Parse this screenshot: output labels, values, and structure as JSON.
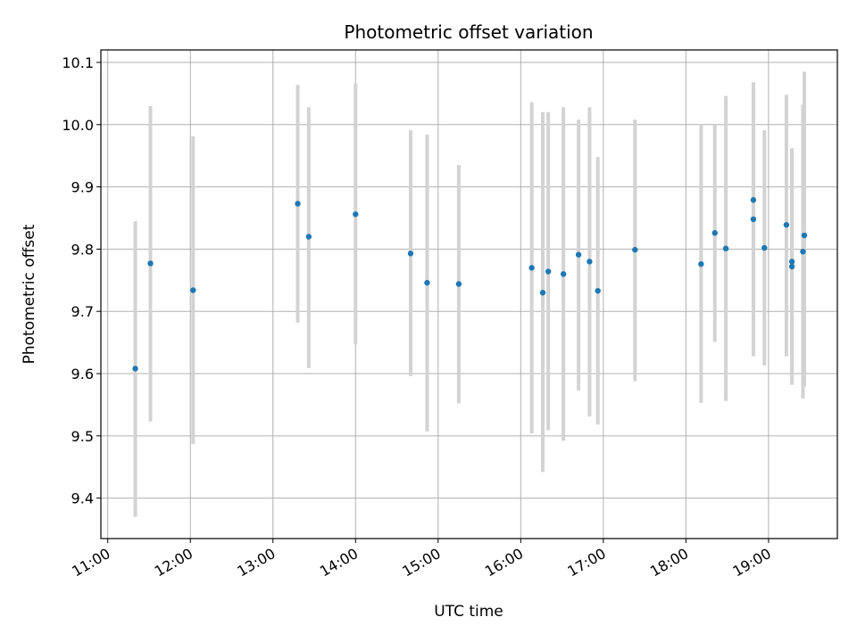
{
  "chart_data": {
    "type": "scatter",
    "title": "Photometric offset variation",
    "xlabel": "UTC time",
    "ylabel": "Photometric offset",
    "xlim": [
      "10:55",
      "19:50"
    ],
    "ylim": [
      9.335,
      10.12
    ],
    "grid": true,
    "x_ticks": [
      "11:00",
      "12:00",
      "13:00",
      "14:00",
      "15:00",
      "16:00",
      "17:00",
      "18:00",
      "19:00"
    ],
    "y_ticks": [
      9.4,
      9.5,
      9.6,
      9.7,
      9.8,
      9.9,
      10.0,
      10.1
    ],
    "y_tick_labels": [
      "9.4",
      "9.5",
      "9.6",
      "9.7",
      "9.8",
      "9.9",
      "10.0",
      "10.1"
    ],
    "colors": {
      "point": "#1f77b4",
      "errorbar": "#d3d3d3",
      "grid": "#b0b0b0"
    },
    "points": [
      {
        "x": "11:20",
        "y": 9.608,
        "ylow": 9.37,
        "yhigh": 9.845
      },
      {
        "x": "11:31",
        "y": 9.777,
        "ylow": 9.523,
        "yhigh": 10.03
      },
      {
        "x": "12:02",
        "y": 9.734,
        "ylow": 9.487,
        "yhigh": 9.981
      },
      {
        "x": "13:18",
        "y": 9.873,
        "ylow": 9.682,
        "yhigh": 10.064
      },
      {
        "x": "13:26",
        "y": 9.82,
        "ylow": 9.609,
        "yhigh": 10.028
      },
      {
        "x": "14:00",
        "y": 9.856,
        "ylow": 9.647,
        "yhigh": 10.066
      },
      {
        "x": "14:40",
        "y": 9.793,
        "ylow": 9.596,
        "yhigh": 9.991
      },
      {
        "x": "14:52",
        "y": 9.746,
        "ylow": 9.507,
        "yhigh": 9.984
      },
      {
        "x": "15:15",
        "y": 9.744,
        "ylow": 9.552,
        "yhigh": 9.935
      },
      {
        "x": "16:08",
        "y": 9.77,
        "ylow": 9.504,
        "yhigh": 10.036
      },
      {
        "x": "16:16",
        "y": 9.73,
        "ylow": 9.442,
        "yhigh": 10.02
      },
      {
        "x": "16:20",
        "y": 9.764,
        "ylow": 9.509,
        "yhigh": 10.02
      },
      {
        "x": "16:31",
        "y": 9.76,
        "ylow": 9.492,
        "yhigh": 10.028
      },
      {
        "x": "16:42",
        "y": 9.791,
        "ylow": 9.573,
        "yhigh": 10.008
      },
      {
        "x": "16:50",
        "y": 9.78,
        "ylow": 9.531,
        "yhigh": 10.028
      },
      {
        "x": "16:56",
        "y": 9.733,
        "ylow": 9.518,
        "yhigh": 9.948
      },
      {
        "x": "17:23",
        "y": 9.799,
        "ylow": 9.588,
        "yhigh": 10.008
      },
      {
        "x": "18:11",
        "y": 9.776,
        "ylow": 9.553,
        "yhigh": 10.0
      },
      {
        "x": "18:21",
        "y": 9.826,
        "ylow": 9.651,
        "yhigh": 10.0
      },
      {
        "x": "18:29",
        "y": 9.801,
        "ylow": 9.556,
        "yhigh": 10.046
      },
      {
        "x": "18:49",
        "y": 9.879,
        "ylow": 9.692,
        "yhigh": 10.066
      },
      {
        "x": "18:49",
        "y": 9.848,
        "ylow": 9.628,
        "yhigh": 10.068
      },
      {
        "x": "18:57",
        "y": 9.802,
        "ylow": 9.613,
        "yhigh": 9.991
      },
      {
        "x": "19:13",
        "y": 9.839,
        "ylow": 9.628,
        "yhigh": 10.048
      },
      {
        "x": "19:17",
        "y": 9.772,
        "ylow": 9.582,
        "yhigh": 9.961
      },
      {
        "x": "19:17",
        "y": 9.78,
        "ylow": 9.598,
        "yhigh": 9.962
      },
      {
        "x": "19:25",
        "y": 9.796,
        "ylow": 9.56,
        "yhigh": 10.032
      },
      {
        "x": "19:26",
        "y": 9.822,
        "ylow": 9.579,
        "yhigh": 10.085
      }
    ]
  }
}
